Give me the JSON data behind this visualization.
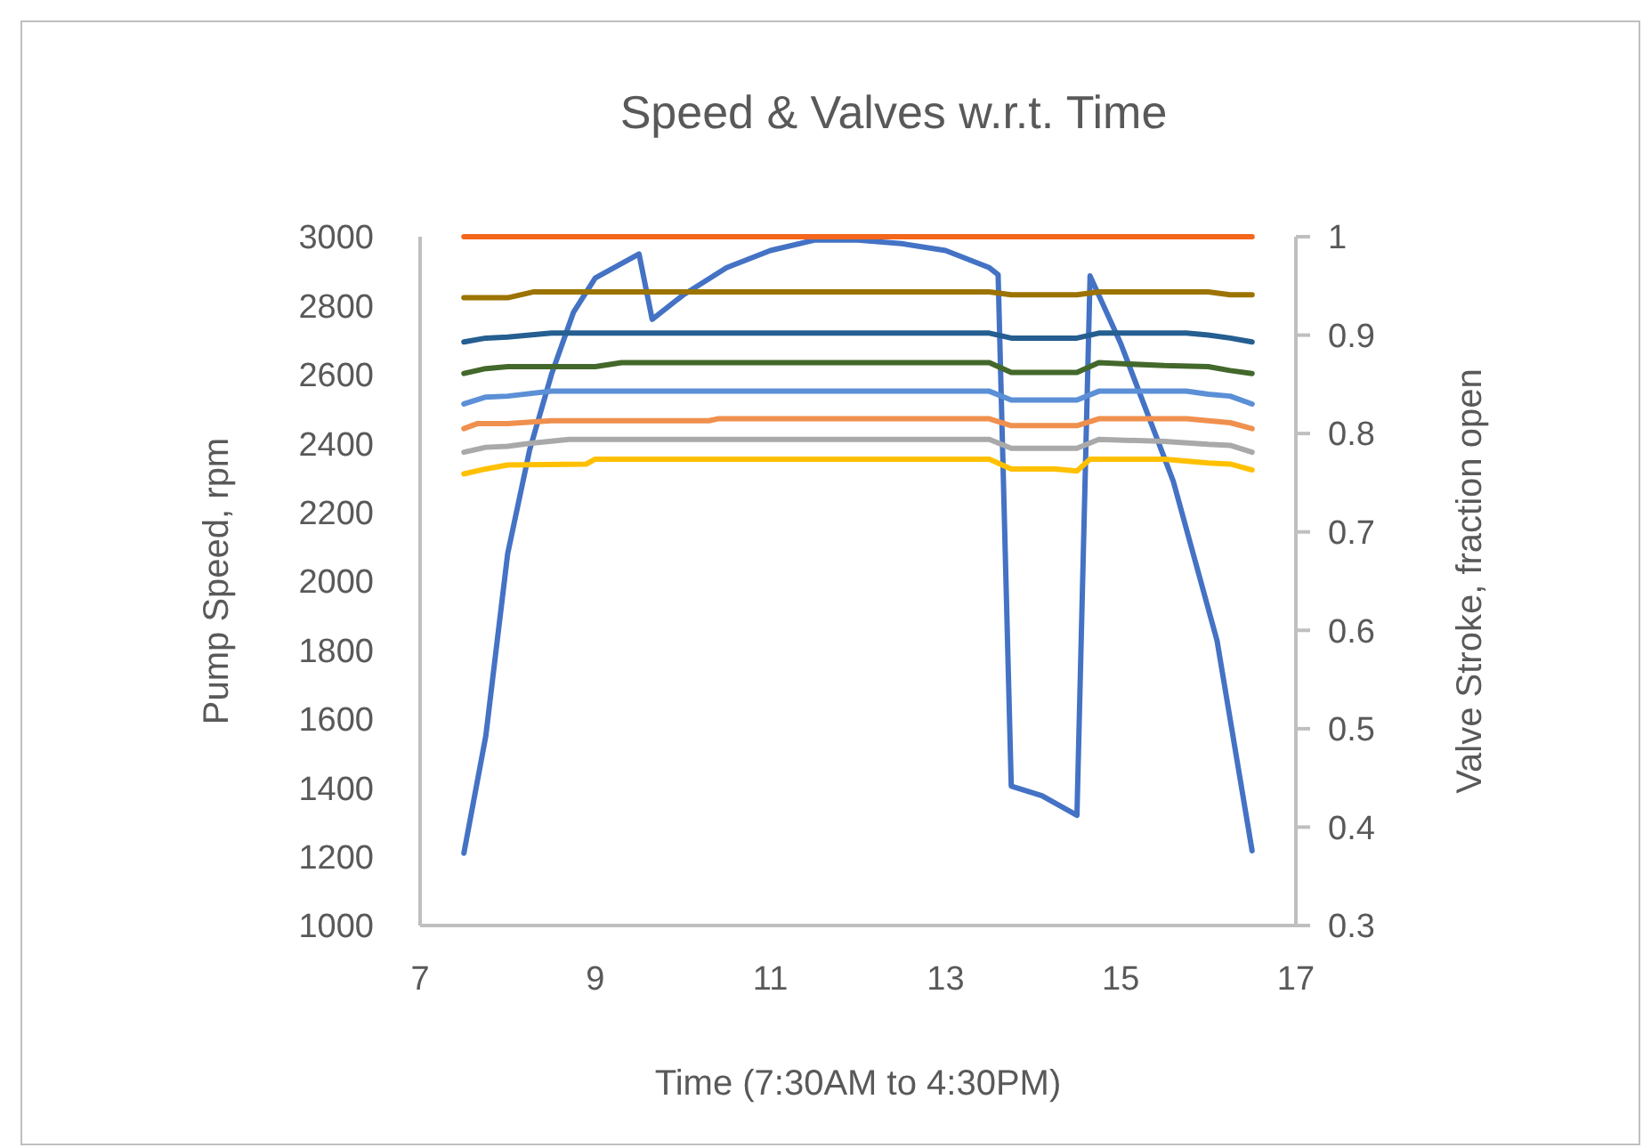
{
  "chart_data": {
    "type": "line",
    "title": "Speed & Valves w.r.t. Time",
    "xlabel": "Time (7:30AM to 4:30PM)",
    "ylabel": "Pump Speed, rpm",
    "y2label": "Valve Stroke, fraction open",
    "xlim": [
      7,
      17
    ],
    "xticks": [
      7,
      9,
      11,
      13,
      15,
      17
    ],
    "ylim": [
      1000,
      3000
    ],
    "yticks": [
      1000,
      1200,
      1400,
      1600,
      1800,
      2000,
      2200,
      2400,
      2600,
      2800,
      3000
    ],
    "y2lim": [
      0.3,
      1
    ],
    "y2ticks": [
      0.3,
      0.4,
      0.5,
      0.6,
      0.7,
      0.8,
      0.9,
      1
    ],
    "line_style": "solid",
    "series": [
      {
        "color": "#4472c4",
        "x": [
          7.5,
          7.75,
          8.0,
          8.25,
          8.5,
          8.75,
          9.0,
          9.5,
          9.65,
          10.0,
          10.5,
          11.0,
          11.5,
          12.0,
          12.5,
          13.0,
          13.5,
          13.6,
          13.75,
          14.1,
          14.5,
          14.65,
          15.0,
          15.6,
          16.1,
          16.5
        ],
        "values": [
          1210,
          1550,
          2080,
          2380,
          2600,
          2780,
          2880,
          2950,
          2760,
          2830,
          2910,
          2960,
          2990,
          2990,
          2980,
          2960,
          2910,
          2890,
          1405,
          1377,
          1320,
          2886,
          2690,
          2290,
          1827,
          1217
        ]
      },
      {
        "color": "#f4661b",
        "axis": "y2",
        "x": [
          7.5,
          16.5
        ],
        "values": [
          1.0,
          1.0
        ]
      },
      {
        "color": "#9c7300",
        "axis": "y2",
        "x": [
          7.5,
          8.0,
          8.3,
          13.5,
          13.75,
          14.5,
          14.75,
          16.0,
          16.25,
          16.5
        ],
        "values": [
          0.938,
          0.938,
          0.944,
          0.944,
          0.941,
          0.941,
          0.944,
          0.944,
          0.941,
          0.941
        ]
      },
      {
        "color": "#255e91",
        "axis": "y2",
        "x": [
          7.5,
          7.75,
          8.0,
          8.5,
          13.5,
          13.75,
          14.5,
          14.75,
          15.75,
          16.0,
          16.25,
          16.5
        ],
        "values": [
          0.893,
          0.897,
          0.898,
          0.902,
          0.902,
          0.897,
          0.897,
          0.902,
          0.902,
          0.9,
          0.897,
          0.893
        ]
      },
      {
        "color": "#43682b",
        "axis": "y2",
        "x": [
          7.5,
          7.75,
          8.0,
          9.0,
          9.3,
          13.5,
          13.75,
          14.5,
          14.75,
          15.5,
          16.0,
          16.25,
          16.5
        ],
        "values": [
          0.861,
          0.866,
          0.868,
          0.868,
          0.872,
          0.872,
          0.862,
          0.862,
          0.872,
          0.869,
          0.868,
          0.864,
          0.861
        ]
      },
      {
        "color": "#5b8fd6",
        "axis": "y2",
        "x": [
          7.5,
          7.75,
          8.0,
          8.5,
          13.5,
          13.75,
          14.5,
          14.75,
          15.75,
          16.0,
          16.25,
          16.5
        ],
        "values": [
          0.83,
          0.837,
          0.838,
          0.843,
          0.843,
          0.834,
          0.834,
          0.843,
          0.843,
          0.84,
          0.838,
          0.83
        ]
      },
      {
        "color": "#f0904e",
        "axis": "y2",
        "x": [
          7.5,
          7.65,
          8.0,
          8.5,
          10.3,
          10.4,
          13.5,
          13.75,
          14.5,
          14.75,
          15.75,
          16.0,
          16.25,
          16.5
        ],
        "values": [
          0.805,
          0.81,
          0.81,
          0.813,
          0.813,
          0.815,
          0.815,
          0.808,
          0.808,
          0.815,
          0.815,
          0.813,
          0.811,
          0.805
        ]
      },
      {
        "color": "#a9a9a9",
        "axis": "y2",
        "x": [
          7.5,
          7.75,
          8.0,
          8.25,
          8.7,
          13.5,
          13.75,
          14.5,
          14.75,
          15.5,
          16.0,
          16.25,
          16.5
        ],
        "values": [
          0.781,
          0.786,
          0.787,
          0.79,
          0.794,
          0.794,
          0.785,
          0.785,
          0.794,
          0.792,
          0.789,
          0.788,
          0.781
        ]
      },
      {
        "color": "#ffc000",
        "axis": "y2",
        "x": [
          7.5,
          7.75,
          8.0,
          8.9,
          9.0,
          13.5,
          13.75,
          14.25,
          14.5,
          14.65,
          15.5,
          16.0,
          16.25,
          16.5
        ],
        "values": [
          0.759,
          0.764,
          0.768,
          0.769,
          0.774,
          0.774,
          0.764,
          0.764,
          0.762,
          0.774,
          0.774,
          0.77,
          0.769,
          0.763
        ]
      }
    ]
  }
}
